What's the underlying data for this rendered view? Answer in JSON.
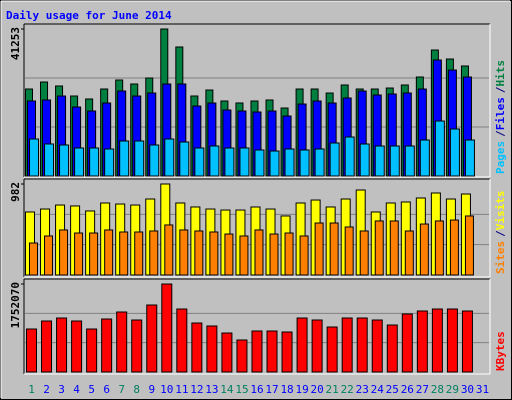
{
  "chart_data": [
    {
      "type": "bar",
      "title": "Daily usage for June 2014",
      "categories": [
        "1",
        "2",
        "3",
        "4",
        "5",
        "6",
        "7",
        "8",
        "9",
        "10",
        "11",
        "12",
        "13",
        "14",
        "15",
        "16",
        "17",
        "18",
        "19",
        "20",
        "21",
        "22",
        "23",
        "24",
        "25",
        "26",
        "27",
        "28",
        "29",
        "30",
        "31"
      ],
      "category_colors": [
        "#008060",
        "#0000ff",
        "#0000ff",
        "#0000ff",
        "#0000ff",
        "#0000ff",
        "#008060",
        "#008060",
        "#0000ff",
        "#0000ff",
        "#0000ff",
        "#0000ff",
        "#0000ff",
        "#008060",
        "#008060",
        "#0000ff",
        "#0000ff",
        "#0000ff",
        "#0000ff",
        "#0000ff",
        "#008060",
        "#008060",
        "#0000ff",
        "#0000ff",
        "#0000ff",
        "#0000ff",
        "#0000ff",
        "#008060",
        "#008060",
        "#0000ff",
        "#0000ff"
      ],
      "ylim": [
        0,
        41253
      ],
      "yticks": [
        41253
      ],
      "legend_separator": "/",
      "series": [
        {
          "name": "Pages",
          "color": "#00c0ff",
          "values": [
            10380,
            8980,
            8700,
            7860,
            7860,
            7580,
            9820,
            9820,
            8700,
            10380,
            9540,
            7860,
            8420,
            7860,
            7860,
            7300,
            7010,
            7580,
            7300,
            7580,
            9260,
            10940,
            8980,
            8420,
            8420,
            8420,
            10100,
            15430,
            13190,
            10100,
            null
          ]
        },
        {
          "name": "Files",
          "color": "#0000ff",
          "values": [
            21050,
            21330,
            22450,
            19360,
            18240,
            20480,
            23850,
            22450,
            23290,
            25820,
            25820,
            19640,
            20480,
            18520,
            18240,
            17960,
            18240,
            16840,
            20200,
            21050,
            20480,
            21890,
            23850,
            22730,
            23010,
            23290,
            24410,
            32550,
            29740,
            27780,
            null
          ]
        },
        {
          "name": "Hits",
          "color": "#008040",
          "values": [
            24415,
            26380,
            25260,
            22450,
            21610,
            24415,
            26940,
            25820,
            27500,
            41253,
            36200,
            22450,
            24130,
            21050,
            20490,
            21050,
            21330,
            19080,
            24415,
            24415,
            23290,
            25540,
            24415,
            24415,
            24690,
            25540,
            27780,
            35360,
            32830,
            30870,
            null
          ]
        }
      ]
    },
    {
      "type": "bar",
      "ylim": [
        0,
        982
      ],
      "yticks": [
        982
      ],
      "legend_separator": "/",
      "series": [
        {
          "name": "Sites",
          "color": "#ff8000",
          "values": [
            345,
            421,
            486,
            453,
            453,
            486,
            464,
            464,
            475,
            540,
            486,
            475,
            464,
            442,
            421,
            486,
            442,
            453,
            421,
            561,
            561,
            518,
            475,
            583,
            583,
            475,
            550,
            583,
            593,
            637,
            null
          ]
        },
        {
          "name": "Visits",
          "color": "#ffff00",
          "values": [
            680,
            712,
            755,
            745,
            691,
            777,
            766,
            755,
            820,
            982,
            777,
            734,
            712,
            701,
            701,
            734,
            712,
            637,
            777,
            809,
            734,
            820,
            917,
            680,
            777,
            788,
            831,
            885,
            820,
            874,
            null
          ]
        }
      ]
    },
    {
      "type": "bar",
      "ylim": [
        0,
        1752070
      ],
      "yticks": [
        1752070
      ],
      "series": [
        {
          "name": "KBytes",
          "color": "#ff0000",
          "values": [
            856100,
            1015400,
            1075100,
            1015400,
            856100,
            1055200,
            1194600,
            1035300,
            1334000,
            1752070,
            1254300,
            975600,
            915900,
            776500,
            637100,
            816300,
            816300,
            796400,
            1075100,
            1035300,
            895900,
            1075100,
            1075100,
            1035300,
            935800,
            1154800,
            1214500,
            1254300,
            1254300,
            1214500,
            null
          ]
        }
      ]
    }
  ]
}
